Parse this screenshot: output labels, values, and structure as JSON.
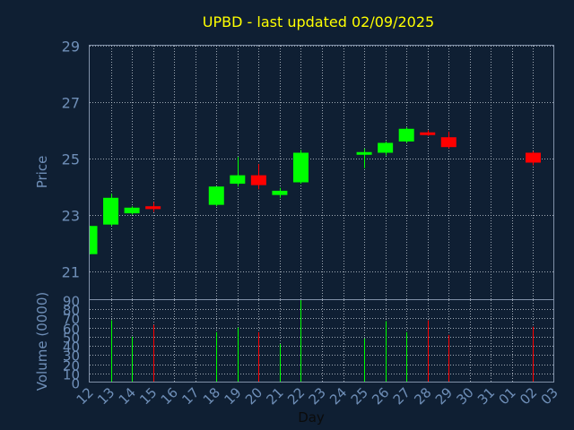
{
  "chart_data": {
    "type": "candlestick",
    "title": "UPBD - last updated 02/09/2025",
    "xlabel": "Day",
    "ylabel": "Price",
    "volume_label": "Volume (0000)",
    "x_tick_labels": [
      "12",
      "13",
      "14",
      "15",
      "16",
      "17",
      "18",
      "19",
      "20",
      "21",
      "22",
      "23",
      "24",
      "25",
      "26",
      "27",
      "28",
      "29",
      "30",
      "31",
      "01",
      "02",
      "03"
    ],
    "price_ticks": [
      21,
      23,
      25,
      27,
      29
    ],
    "price_ylim": [
      20.0,
      29.0
    ],
    "volume_ticks": [
      0,
      10,
      20,
      30,
      40,
      50,
      60,
      70,
      80,
      90
    ],
    "volume_ylim": [
      0,
      90
    ],
    "grid": true,
    "colors": {
      "background": "#0f1f33",
      "up": "#00ff00",
      "down": "#ff0000",
      "axis_text": "#6f8fb8",
      "title": "#ffff00",
      "grid": "#d0d8e0",
      "frame": "#8090a8"
    },
    "candles": [
      {
        "day": "12",
        "open": 21.6,
        "high": 22.6,
        "low": 21.6,
        "close": 22.6
      },
      {
        "day": "13",
        "open": 22.65,
        "high": 23.75,
        "low": 22.6,
        "close": 23.6
      },
      {
        "day": "14",
        "open": 23.05,
        "high": 23.3,
        "low": 23.0,
        "close": 23.25
      },
      {
        "day": "15",
        "open": 23.3,
        "high": 23.45,
        "low": 23.1,
        "close": 23.2
      },
      {
        "day": "18",
        "open": 23.35,
        "high": 24.0,
        "low": 23.3,
        "close": 24.0
      },
      {
        "day": "19",
        "open": 24.1,
        "high": 25.05,
        "low": 24.0,
        "close": 24.4
      },
      {
        "day": "20",
        "open": 24.4,
        "high": 24.8,
        "low": 23.9,
        "close": 24.05
      },
      {
        "day": "21",
        "open": 23.7,
        "high": 23.95,
        "low": 23.6,
        "close": 23.85
      },
      {
        "day": "22",
        "open": 24.15,
        "high": 25.3,
        "low": 24.1,
        "close": 25.2
      },
      {
        "day": "25",
        "open": 25.15,
        "high": 25.35,
        "low": 24.65,
        "close": 25.2
      },
      {
        "day": "26",
        "open": 25.2,
        "high": 25.6,
        "low": 25.1,
        "close": 25.55
      },
      {
        "day": "27",
        "open": 25.6,
        "high": 26.1,
        "low": 25.55,
        "close": 26.05
      },
      {
        "day": "28",
        "open": 25.9,
        "high": 26.0,
        "low": 25.8,
        "close": 25.85
      },
      {
        "day": "29",
        "open": 25.75,
        "high": 25.95,
        "low": 25.35,
        "close": 25.4
      },
      {
        "day": "02",
        "open": 25.2,
        "high": 25.25,
        "low": 24.75,
        "close": 24.85
      }
    ],
    "volume": [
      {
        "day": "12",
        "value": 0
      },
      {
        "day": "13",
        "value": 68
      },
      {
        "day": "14",
        "value": 50
      },
      {
        "day": "15",
        "value": 63
      },
      {
        "day": "18",
        "value": 55
      },
      {
        "day": "19",
        "value": 60
      },
      {
        "day": "20",
        "value": 55
      },
      {
        "day": "21",
        "value": 42
      },
      {
        "day": "22",
        "value": 90
      },
      {
        "day": "25",
        "value": 48
      },
      {
        "day": "26",
        "value": 67
      },
      {
        "day": "27",
        "value": 55
      },
      {
        "day": "28",
        "value": 68
      },
      {
        "day": "29",
        "value": 52
      },
      {
        "day": "02",
        "value": 61
      }
    ]
  }
}
